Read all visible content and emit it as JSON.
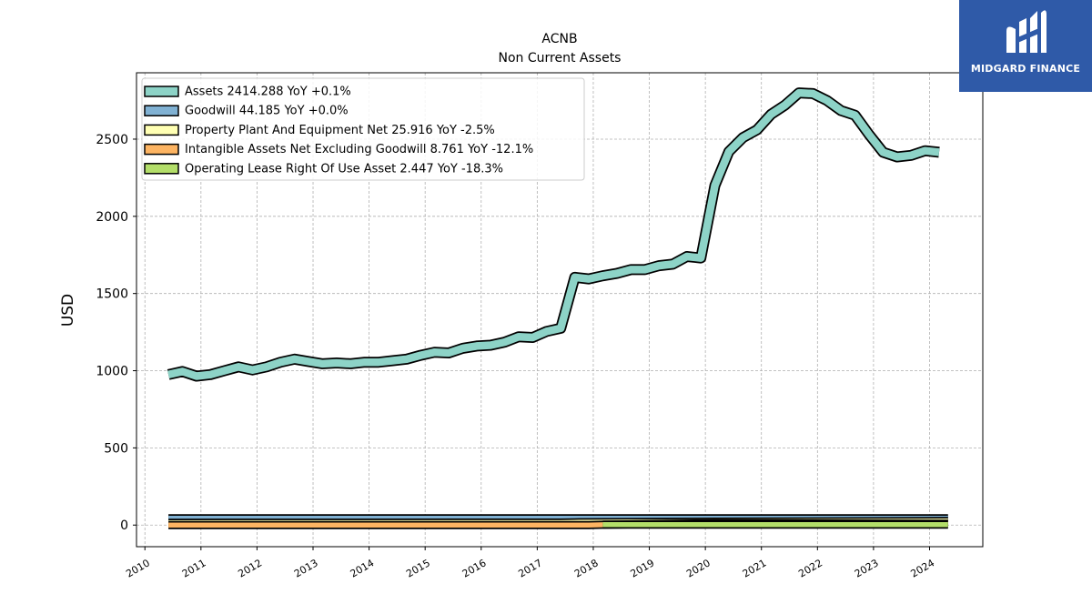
{
  "chart_data": {
    "type": "area",
    "title": "ACNB",
    "subtitle": "Non Current  Assets",
    "ylabel": "USD",
    "xlabel": "",
    "xlim": [
      2009.85,
      2024.95
    ],
    "ylim": [
      -140,
      2930
    ],
    "yticks": [
      0,
      500,
      1000,
      1500,
      2000,
      2500
    ],
    "xticks": [
      2010,
      2011,
      2012,
      2013,
      2014,
      2015,
      2016,
      2017,
      2018,
      2019,
      2020,
      2021,
      2022,
      2023,
      2024
    ],
    "grid": true,
    "legend_position": "top-left",
    "legend": [
      "Assets  2414.288 YoY +0.1%",
      "Goodwill  44.185 YoY +0.0%",
      "Property Plant And Equipment Net  25.916 YoY -2.5%",
      "Intangible Assets Net Excluding Goodwill  8.761 YoY -12.1%",
      "Operating Lease Right Of Use Asset  2.447 YoY -18.3%"
    ],
    "series": [
      {
        "name": "Assets",
        "color": "#8dd3c7",
        "x": [
          2010.42,
          2010.67,
          2010.92,
          2011.17,
          2011.42,
          2011.67,
          2011.92,
          2012.17,
          2012.42,
          2012.67,
          2012.92,
          2013.17,
          2013.42,
          2013.67,
          2013.92,
          2014.17,
          2014.42,
          2014.67,
          2014.92,
          2015.17,
          2015.42,
          2015.67,
          2015.92,
          2016.17,
          2016.42,
          2016.67,
          2016.92,
          2017.17,
          2017.42,
          2017.67,
          2017.92,
          2018.17,
          2018.42,
          2018.67,
          2018.92,
          2019.17,
          2019.42,
          2019.67,
          2019.92,
          2020.17,
          2020.42,
          2020.67,
          2020.92,
          2021.17,
          2021.42,
          2021.67,
          2021.92,
          2022.17,
          2022.42,
          2022.67,
          2022.92,
          2023.17,
          2023.42,
          2023.67,
          2023.92,
          2024.17
        ],
        "values": [
          975,
          995,
          965,
          975,
          1000,
          1025,
          1005,
          1025,
          1055,
          1075,
          1060,
          1045,
          1050,
          1045,
          1055,
          1055,
          1065,
          1075,
          1100,
          1120,
          1115,
          1145,
          1160,
          1165,
          1185,
          1220,
          1215,
          1255,
          1275,
          1605,
          1595,
          1615,
          1630,
          1655,
          1655,
          1680,
          1690,
          1740,
          1730,
          2200,
          2420,
          2510,
          2560,
          2660,
          2720,
          2800,
          2795,
          2750,
          2685,
          2655,
          2530,
          2415,
          2385,
          2395,
          2425,
          2415
        ]
      },
      {
        "name": "Goodwill",
        "color": "#80b1d3",
        "x": [
          2010.42,
          2020.17,
          2024.33
        ],
        "values": [
          44.185,
          44.185,
          44.185
        ]
      },
      {
        "name": "Property Plant And Equipment Net",
        "color": "#ffffb3",
        "x": [
          2010.42,
          2017.42,
          2017.67,
          2020.17,
          2024.33
        ],
        "values": [
          15,
          16,
          18,
          22,
          25.916
        ]
      },
      {
        "name": "Intangible Assets Net Excluding Goodwill",
        "color": "#fdb462",
        "x": [
          2010.42,
          2017.92,
          2018.17,
          2020.17,
          2024.33
        ],
        "values": [
          0,
          0,
          2,
          12,
          8.761
        ]
      },
      {
        "name": "Operating Lease Right Of Use Asset",
        "color": "#b3de69",
        "x": [
          2018.17,
          2020.17,
          2024.33
        ],
        "values": [
          3,
          3,
          2.447
        ]
      }
    ]
  },
  "logo": {
    "text": "MIDGARD FINANCE"
  }
}
